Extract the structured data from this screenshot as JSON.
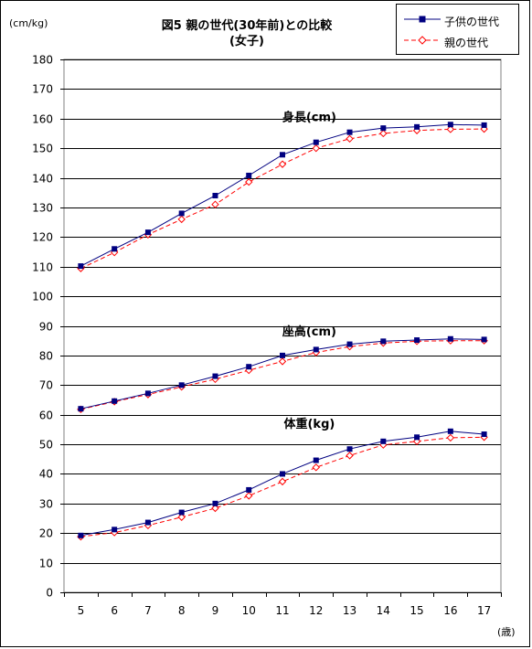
{
  "chart_data": {
    "type": "line",
    "title": "図5 親の世代(30年前)との比較",
    "subtitle": "(女子)",
    "ylabel": "(cm/kg)",
    "xlabel": "(歳)",
    "ylim": [
      0,
      180
    ],
    "y_ticks": [
      0,
      10,
      20,
      30,
      40,
      50,
      60,
      70,
      80,
      90,
      100,
      110,
      120,
      130,
      140,
      150,
      160,
      170,
      180
    ],
    "categories": [
      "5",
      "6",
      "7",
      "8",
      "9",
      "10",
      "11",
      "12",
      "13",
      "14",
      "15",
      "16",
      "17"
    ],
    "grid": true,
    "legend_position": "top-right",
    "legend": [
      {
        "name": "子供の世代",
        "color": "#000080",
        "marker": "square",
        "line": "solid"
      },
      {
        "name": "親の世代",
        "color": "#ff0000",
        "marker": "diamond-open",
        "line": "dashed"
      }
    ],
    "groups": [
      {
        "label": "身長(cm)",
        "series": [
          {
            "name": "子供の世代",
            "values": [
              110.2,
              116.0,
              121.6,
              128.0,
              134.0,
              140.8,
              147.8,
              152.0,
              155.4,
              156.8,
              157.2,
              158.0,
              157.8
            ]
          },
          {
            "name": "親の世代",
            "values": [
              109.4,
              114.8,
              120.8,
              126.0,
              131.0,
              138.6,
              144.6,
              150.0,
              153.2,
              155.0,
              156.0,
              156.4,
              156.5
            ]
          }
        ]
      },
      {
        "label": "座高(cm)",
        "series": [
          {
            "name": "子供の世代",
            "values": [
              62.0,
              64.6,
              67.2,
              70.0,
              73.0,
              76.2,
              80.0,
              82.0,
              83.8,
              84.8,
              85.2,
              85.6,
              85.4
            ]
          },
          {
            "name": "親の世代",
            "values": [
              61.8,
              64.4,
              66.8,
              69.4,
              72.0,
              75.0,
              78.0,
              81.0,
              83.0,
              84.2,
              84.8,
              85.0,
              85.0
            ]
          }
        ]
      },
      {
        "label": "体重(kg)",
        "series": [
          {
            "name": "子供の世代",
            "values": [
              19.2,
              21.2,
              23.6,
              27.0,
              30.0,
              34.6,
              40.0,
              44.6,
              48.4,
              51.0,
              52.4,
              54.4,
              53.4
            ]
          },
          {
            "name": "親の世代",
            "values": [
              18.8,
              20.2,
              22.6,
              25.4,
              28.4,
              32.6,
              37.4,
              42.2,
              46.2,
              49.8,
              51.0,
              52.2,
              52.4
            ]
          }
        ]
      }
    ]
  }
}
